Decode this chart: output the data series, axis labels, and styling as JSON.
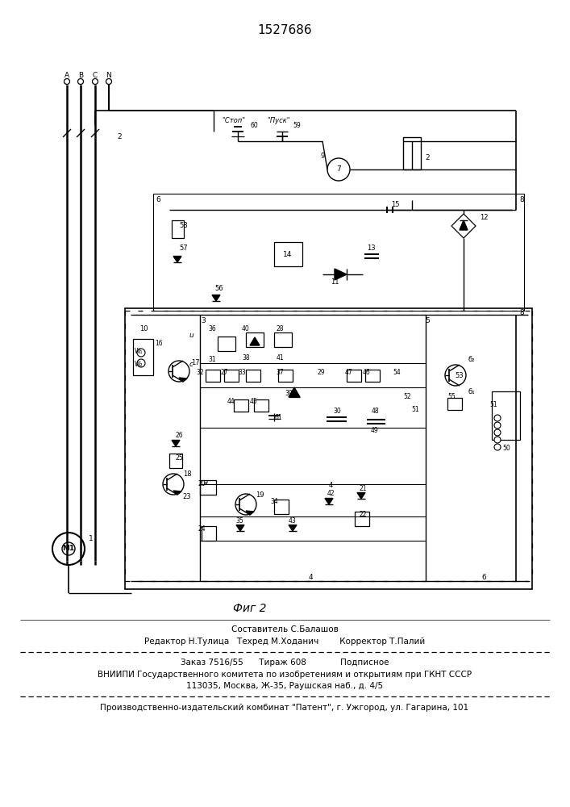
{
  "patent_number": "1527686",
  "fig_label": "Фиг 2",
  "background_color": "#ffffff",
  "footer_lines": [
    "Составитель С.Балашов",
    "Редактор Н.Тулица   Техред М.Ходанич        Корректор Т.Палий",
    "Заказ 7516/55      Тираж 608             Подписное",
    "ВНИИПИ Государственного комитета по изобретениям и открытиям при ГКНТ СССР",
    "113035, Москва, Ж-35, Раушская наб., д. 4/5",
    "Производственно-издательский комбинат \"Патент\", г. Ужгород, ул. Гагарина, 101"
  ]
}
